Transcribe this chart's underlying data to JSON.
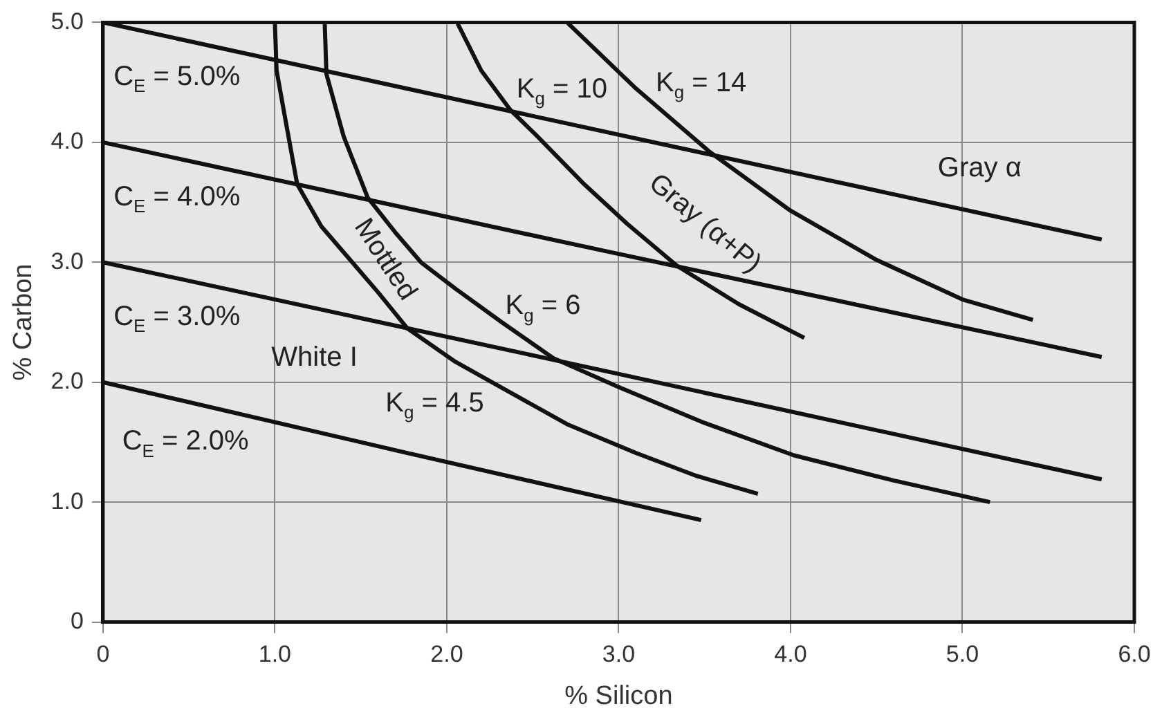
{
  "chart_data": {
    "type": "line",
    "xlabel": "% Silicon",
    "ylabel": "% Carbon",
    "xlim": [
      0,
      6
    ],
    "ylim": [
      0,
      5
    ],
    "xticks": [
      0,
      {
        "value": 1,
        "label": "1.0"
      },
      {
        "value": 2,
        "label": "2.0"
      },
      {
        "value": 3,
        "label": "3.0"
      },
      {
        "value": 4,
        "label": "4.0"
      },
      {
        "value": 5,
        "label": "5.0"
      },
      {
        "value": 6,
        "label": "6.0"
      }
    ],
    "yticks": [
      0,
      {
        "value": 1,
        "label": "1.0"
      },
      {
        "value": 2,
        "label": "2.0"
      },
      {
        "value": 3,
        "label": "3.0"
      },
      {
        "value": 4,
        "label": "4.0"
      },
      {
        "value": 5,
        "label": "5.0"
      }
    ],
    "grid": true,
    "legend": false,
    "marker": "none",
    "line_style": "solid",
    "series": [
      {
        "name": "C$_{E}$ = 5.0%",
        "color": "#111111",
        "x": [
          0,
          2.37,
          5.81
        ],
        "values": [
          5.0,
          4.26,
          3.19
        ]
      },
      {
        "name": "C$_{E}$ = 4.0%",
        "color": "#111111",
        "x": [
          0,
          2.9,
          5.81
        ],
        "values": [
          4.0,
          3.1,
          2.21
        ]
      },
      {
        "name": "C$_{E}$ = 3.0%",
        "color": "#111111",
        "x": [
          0,
          2.9,
          5.81
        ],
        "values": [
          3.0,
          2.1,
          1.19
        ]
      },
      {
        "name": "C$_{E}$ = 2.0%",
        "color": "#111111",
        "x": [
          0,
          1.74,
          3.48
        ],
        "values": [
          2.0,
          1.42,
          0.85
        ]
      },
      {
        "name": "K$_{g}$ = 4.5",
        "color": "#111111",
        "x": [
          1.0,
          1.01,
          1.06,
          1.13,
          1.27,
          1.45,
          1.6,
          1.77,
          2.05,
          2.35,
          2.7,
          3.1,
          3.45,
          3.81
        ],
        "values": [
          5.0,
          4.6,
          4.2,
          3.65,
          3.3,
          3.0,
          2.75,
          2.45,
          2.17,
          1.93,
          1.65,
          1.41,
          1.22,
          1.07
        ]
      },
      {
        "name": "K$_{g}$ = 6",
        "color": "#111111",
        "x": [
          1.29,
          1.3,
          1.4,
          1.54,
          1.7,
          1.85,
          2.05,
          2.32,
          2.62,
          3.0,
          3.5,
          4.02,
          4.6,
          5.16
        ],
        "values": [
          5.0,
          4.57,
          4.05,
          3.54,
          3.25,
          3.0,
          2.78,
          2.5,
          2.2,
          1.96,
          1.66,
          1.39,
          1.18,
          1.0
        ]
      },
      {
        "name": "K$_{g}$ = 10",
        "color": "#111111",
        "x": [
          2.06,
          2.2,
          2.37,
          2.52,
          2.8,
          3.05,
          3.34,
          3.7,
          4.08
        ],
        "values": [
          5.0,
          4.6,
          4.27,
          4.06,
          3.65,
          3.32,
          2.97,
          2.65,
          2.37
        ]
      },
      {
        "name": "K$_{g}$ = 14",
        "color": "#111111",
        "x": [
          2.7,
          3.1,
          3.53,
          4.0,
          4.5,
          5.0,
          5.41
        ],
        "values": [
          5.0,
          4.45,
          3.92,
          3.43,
          3.02,
          2.69,
          2.52
        ]
      }
    ],
    "annotations": [
      "White I",
      "Mottled",
      "Gray (α+P)",
      "Gray α"
    ]
  }
}
